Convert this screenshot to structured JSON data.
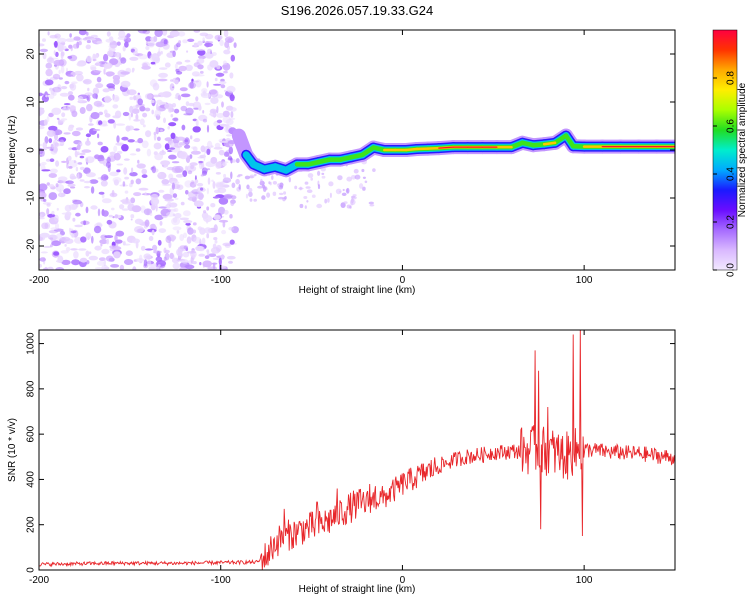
{
  "title": "S196.2026.057.19.33.G24",
  "chart_data": [
    {
      "type": "heatmap",
      "xlabel": "Height of straight line (km)",
      "ylabel": "Frequency (Hz)",
      "xlim": [
        -200,
        150
      ],
      "ylim": [
        -25,
        25
      ],
      "x_ticks": [
        -200,
        -100,
        0,
        100
      ],
      "y_ticks": [
        -20,
        -10,
        0,
        10,
        20
      ],
      "colorbar": {
        "label": "Normalized spectral amplitude",
        "range": [
          0.0,
          1.0
        ],
        "ticks": [
          0.0,
          0.2,
          0.4,
          0.6,
          0.8
        ],
        "colors": [
          "#f2e9ff",
          "#d9b8ff",
          "#a66bff",
          "#6a0dff",
          "#1a1aff",
          "#00aaff",
          "#00eecc",
          "#22dd22",
          "#aaff00",
          "#ffee00",
          "#ffaa00",
          "#ff3300",
          "#ff0040"
        ]
      },
      "noise_region": {
        "x_from": -200,
        "x_to": -92,
        "freq_from": -25,
        "freq_to": 25,
        "amplitude": [
          0.02,
          0.2
        ]
      },
      "signal_ridge": [
        {
          "x": -90,
          "freq": 3,
          "amp": 0.25
        },
        {
          "x": -86,
          "freq": -1,
          "amp": 0.45
        },
        {
          "x": -82,
          "freq": -3,
          "amp": 0.55
        },
        {
          "x": -76,
          "freq": -4,
          "amp": 0.5
        },
        {
          "x": -70,
          "freq": -3.5,
          "amp": 0.5
        },
        {
          "x": -64,
          "freq": -4.2,
          "amp": 0.45
        },
        {
          "x": -58,
          "freq": -3,
          "amp": 0.55
        },
        {
          "x": -52,
          "freq": -3,
          "amp": 0.6
        },
        {
          "x": -46,
          "freq": -2.5,
          "amp": 0.6
        },
        {
          "x": -40,
          "freq": -2,
          "amp": 0.65
        },
        {
          "x": -34,
          "freq": -2,
          "amp": 0.7
        },
        {
          "x": -28,
          "freq": -1.5,
          "amp": 0.7
        },
        {
          "x": -22,
          "freq": -1,
          "amp": 0.72
        },
        {
          "x": -16,
          "freq": 0.5,
          "amp": 0.72
        },
        {
          "x": -10,
          "freq": 0,
          "amp": 0.75
        },
        {
          "x": -4,
          "freq": 0,
          "amp": 0.78
        },
        {
          "x": 2,
          "freq": 0,
          "amp": 0.85
        },
        {
          "x": 8,
          "freq": 0.2,
          "amp": 0.88
        },
        {
          "x": 14,
          "freq": 0.3,
          "amp": 0.9
        },
        {
          "x": 20,
          "freq": 0.4,
          "amp": 0.92
        },
        {
          "x": 28,
          "freq": 0.6,
          "amp": 0.95
        },
        {
          "x": 36,
          "freq": 0.6,
          "amp": 0.95
        },
        {
          "x": 44,
          "freq": 0.6,
          "amp": 0.95
        },
        {
          "x": 52,
          "freq": 0.6,
          "amp": 0.95
        },
        {
          "x": 60,
          "freq": 0.6,
          "amp": 0.9
        },
        {
          "x": 66,
          "freq": 1.5,
          "amp": 0.6
        },
        {
          "x": 72,
          "freq": 1,
          "amp": 0.7
        },
        {
          "x": 78,
          "freq": 1.2,
          "amp": 0.75
        },
        {
          "x": 84,
          "freq": 1.5,
          "amp": 0.8
        },
        {
          "x": 90,
          "freq": 3,
          "amp": 0.55
        },
        {
          "x": 94,
          "freq": 0.8,
          "amp": 0.7
        },
        {
          "x": 100,
          "freq": 0.7,
          "amp": 0.85
        },
        {
          "x": 110,
          "freq": 0.7,
          "amp": 0.95
        },
        {
          "x": 120,
          "freq": 0.7,
          "amp": 0.95
        },
        {
          "x": 130,
          "freq": 0.7,
          "amp": 0.95
        },
        {
          "x": 140,
          "freq": 0.7,
          "amp": 0.95
        },
        {
          "x": 150,
          "freq": 0.7,
          "amp": 0.95
        }
      ]
    },
    {
      "type": "line",
      "xlabel": "Height of straight line (km)",
      "ylabel": "SNR (10 * v/v)",
      "xlim": [
        -200,
        150
      ],
      "ylim": [
        0,
        1060
      ],
      "x_ticks": [
        -200,
        -100,
        0,
        100
      ],
      "y_ticks": [
        0,
        200,
        400,
        600,
        800,
        1000
      ],
      "color": "#e8262a",
      "x": [
        -200,
        -160,
        -120,
        -80,
        -75,
        -70,
        -65,
        -60,
        -55,
        -50,
        -45,
        -40,
        -35,
        -30,
        -25,
        -20,
        -15,
        -10,
        -5,
        0,
        5,
        10,
        15,
        20,
        25,
        30,
        35,
        40,
        45,
        50,
        55,
        60,
        65,
        70,
        75,
        80,
        85,
        90,
        95,
        100,
        105,
        110,
        115,
        120,
        125,
        130,
        135,
        140,
        145,
        150
      ],
      "y": [
        25,
        30,
        30,
        35,
        60,
        120,
        150,
        160,
        180,
        190,
        200,
        220,
        250,
        270,
        290,
        300,
        310,
        320,
        350,
        380,
        400,
        420,
        440,
        460,
        475,
        490,
        500,
        505,
        510,
        520,
        520,
        525,
        525,
        530,
        530,
        525,
        515,
        500,
        520,
        530,
        530,
        525,
        520,
        520,
        515,
        515,
        510,
        505,
        500,
        495
      ],
      "spikes": [
        {
          "x": -65,
          "y": 270
        },
        {
          "x": -47,
          "y": 300
        },
        {
          "x": -36,
          "y": 360
        },
        {
          "x": -18,
          "y": 380
        },
        {
          "x": -15,
          "y": 370
        },
        {
          "x": 73,
          "y": 970
        },
        {
          "x": 75,
          "y": 880
        },
        {
          "x": 80,
          "y": 720
        },
        {
          "x": 94,
          "y": 1040
        },
        {
          "x": 98,
          "y": 1070
        },
        {
          "x": 99,
          "y": 150
        },
        {
          "x": 76,
          "y": 180
        }
      ]
    }
  ]
}
